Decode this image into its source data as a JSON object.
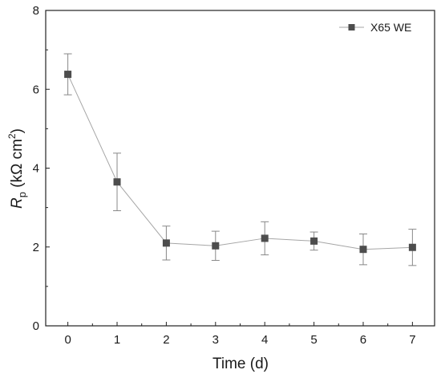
{
  "chart_data": {
    "type": "line",
    "xlabel": "Time (d)",
    "ylabel": {
      "symbol": "R",
      "subscript": "p",
      "unit_open": " (kΩ cm",
      "unit_sup": "2",
      "unit_close": ")"
    },
    "xlim": [
      -0.45,
      7.45
    ],
    "ylim": [
      0,
      8
    ],
    "x_ticks": [
      0,
      1,
      2,
      3,
      4,
      5,
      6,
      7
    ],
    "y_ticks": [
      0,
      2,
      4,
      6,
      8
    ],
    "grid": false,
    "legend_position": "top-right",
    "series": [
      {
        "name": "X65 WE",
        "marker": "square",
        "color": "#4d4d4d",
        "line_color": "#a6a6a6",
        "x": [
          0,
          1,
          2,
          3,
          4,
          5,
          6,
          7
        ],
        "y": [
          6.38,
          3.65,
          2.1,
          2.03,
          2.22,
          2.15,
          1.94,
          1.99
        ],
        "error": [
          0.52,
          0.73,
          0.43,
          0.37,
          0.42,
          0.23,
          0.39,
          0.46
        ]
      }
    ]
  }
}
